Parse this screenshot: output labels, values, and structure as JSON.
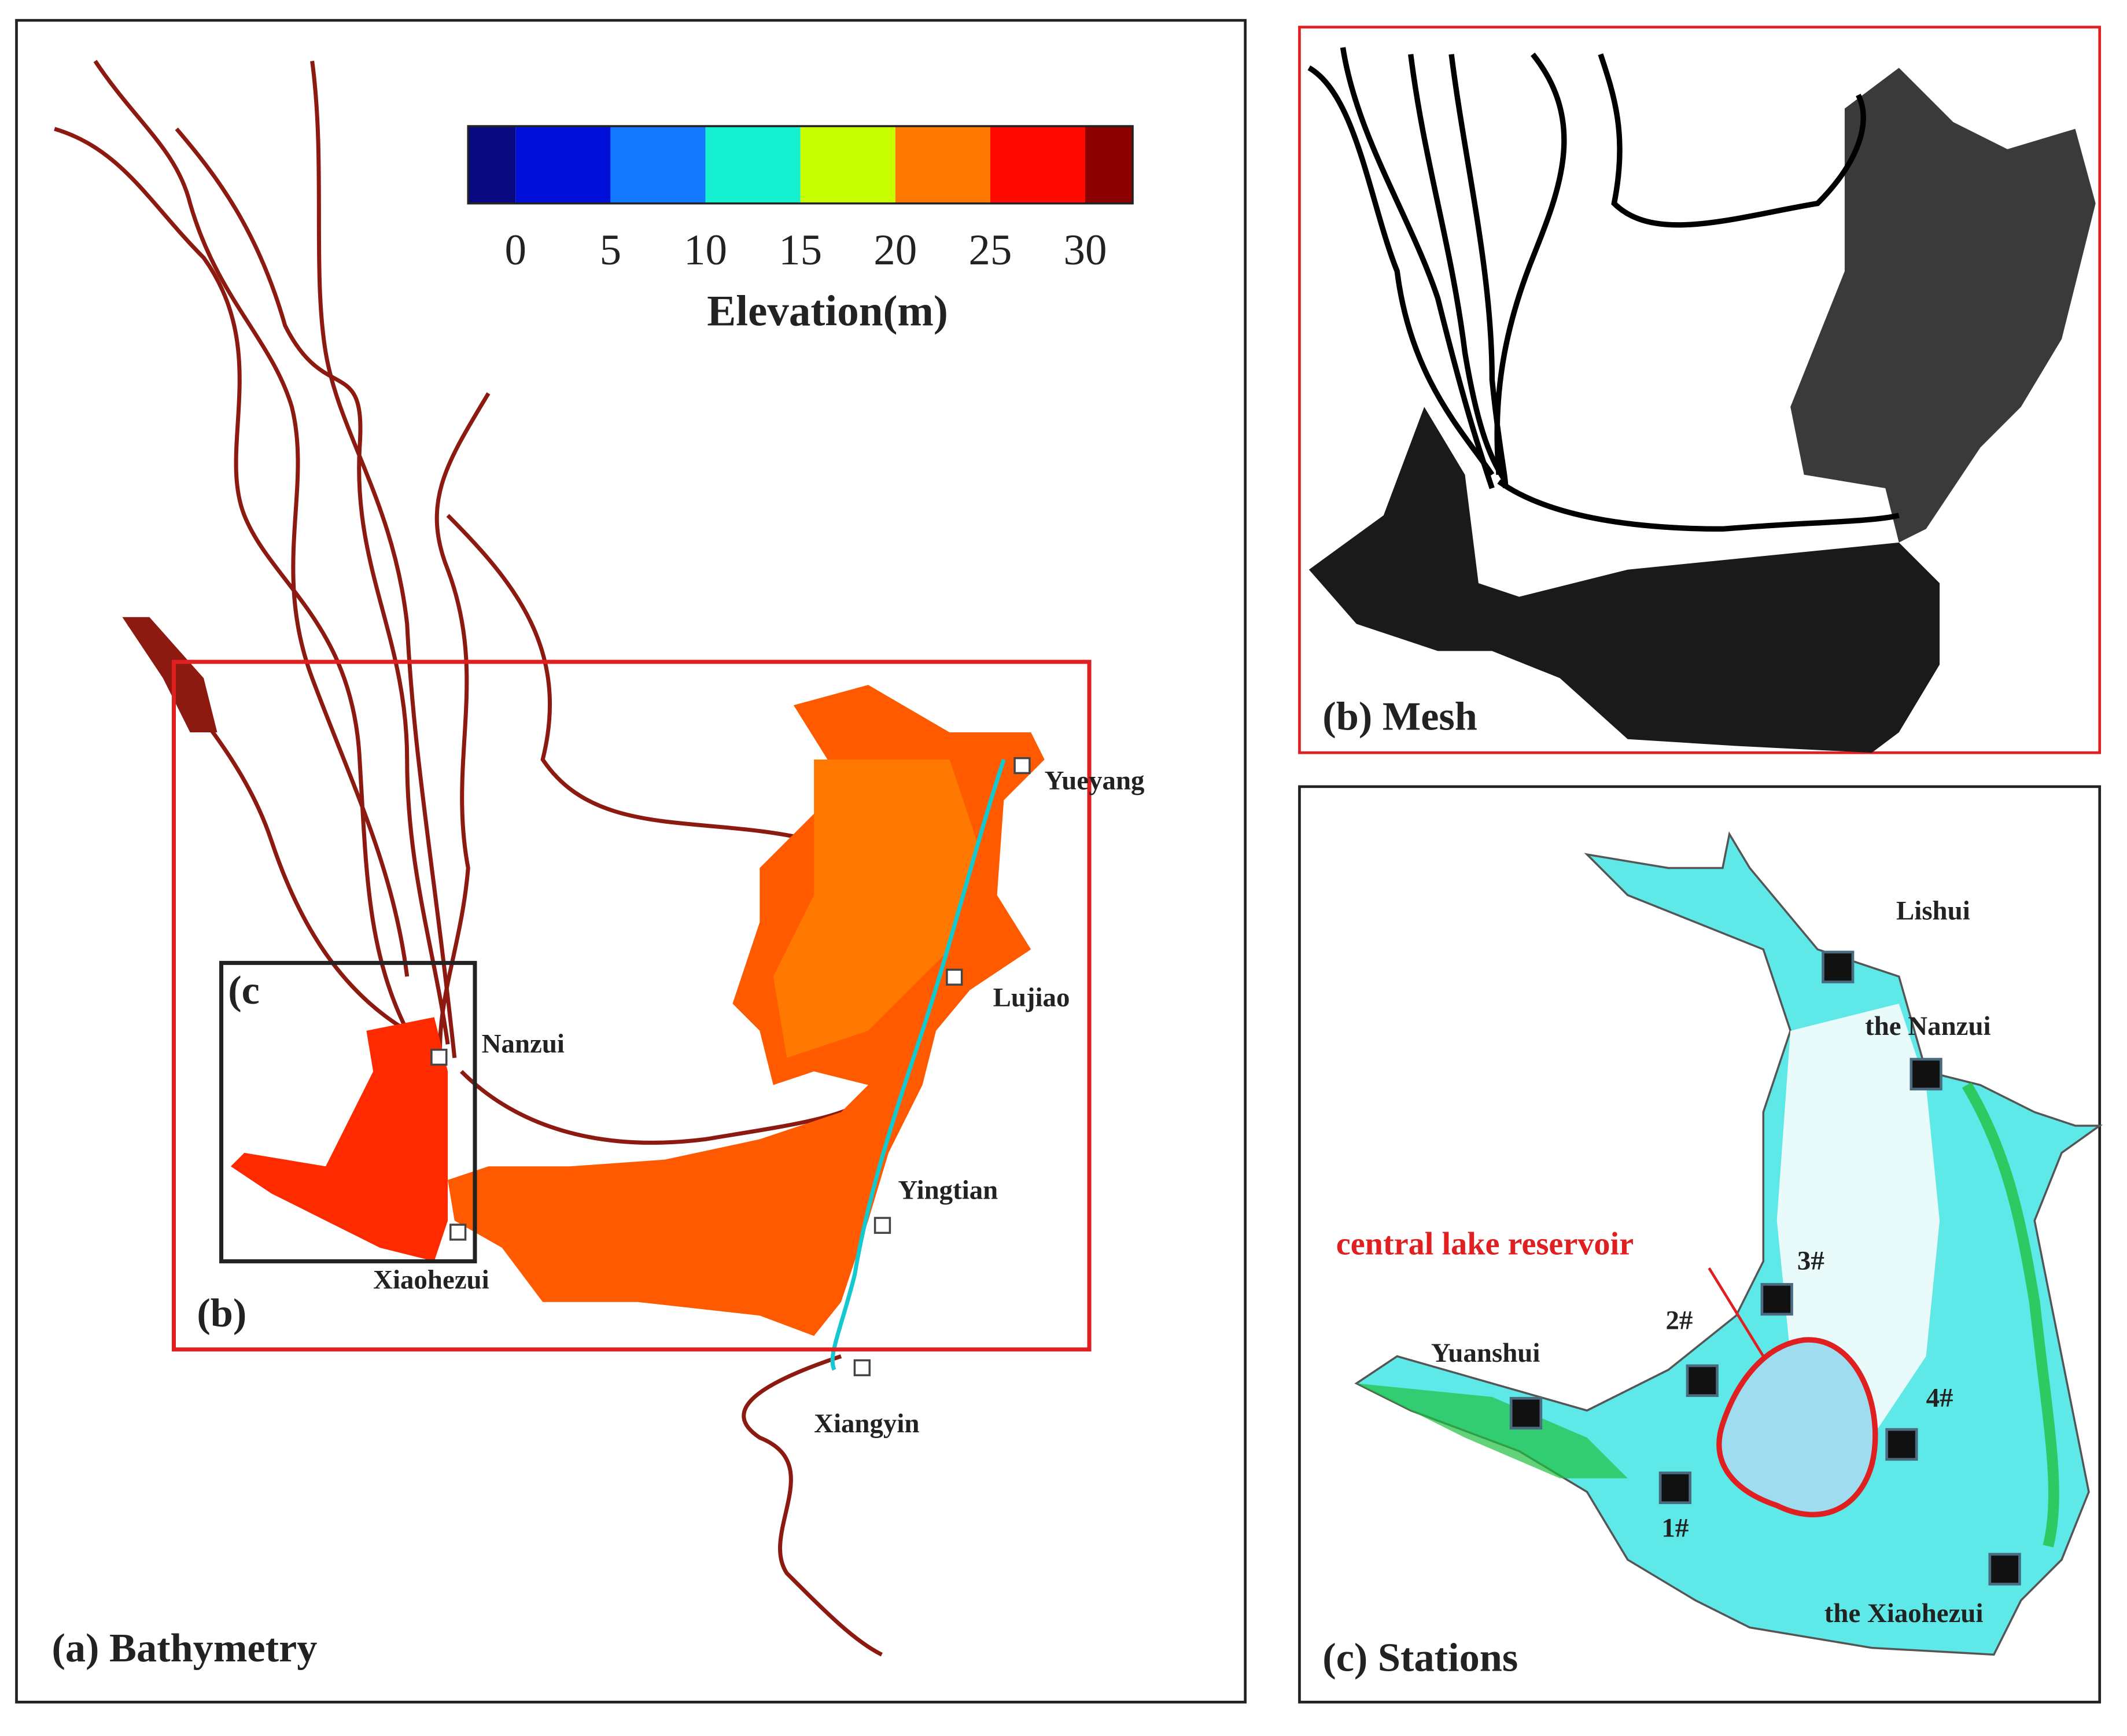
{
  "panel_a": {
    "label": "(a) Bathymetry",
    "colorbar": {
      "title": "Elevation(m)",
      "ticks": [
        0,
        5,
        10,
        15,
        20,
        25,
        30
      ],
      "colors": [
        "#0a0a80",
        "#0010d8",
        "#1478ff",
        "#14f0d0",
        "#c8ff00",
        "#ff7800",
        "#ff0a00",
        "#8c0000"
      ]
    },
    "box_b_label": "(b)",
    "box_c_label": "(c",
    "places": [
      "Yueyang",
      "Lujiao",
      "Nanzui",
      "Yingtian",
      "Xiaohezui",
      "Xiangyin"
    ]
  },
  "panel_b": {
    "label": "(b) Mesh"
  },
  "panel_c": {
    "label": "(c) Stations",
    "reservoir": "central lake reservoir",
    "places": [
      "Lishui",
      "the Nanzui",
      "Yuanshui",
      "the Xiaohezui"
    ],
    "stations": [
      "1#",
      "2#",
      "3#",
      "4#"
    ]
  }
}
